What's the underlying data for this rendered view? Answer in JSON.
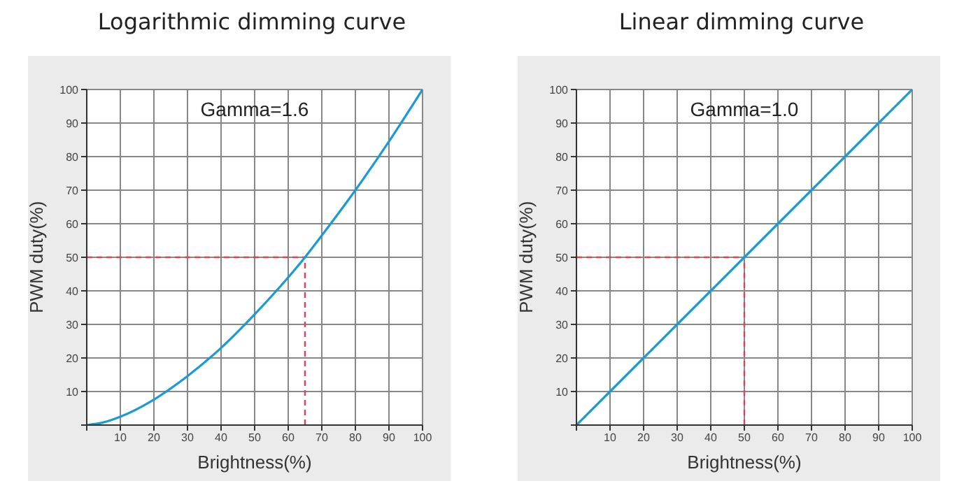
{
  "chart_data": [
    {
      "type": "line",
      "title": "Logarithmic dimming curve",
      "xlabel": "Brightness(%)",
      "ylabel": "PWM duty(%)",
      "annotations": [
        "Gamma=1.6"
      ],
      "x": [
        0,
        5,
        10,
        20,
        30,
        40,
        50,
        60,
        65,
        70,
        80,
        90,
        100
      ],
      "series": [
        {
          "color": "#1a9ad6",
          "values": [
            0,
            0.8,
            2.5,
            7.6,
            14.6,
            23,
            33,
            44,
            50,
            56.5,
            70,
            84.5,
            100
          ]
        }
      ],
      "xlim": [
        0,
        100
      ],
      "ylim": [
        0,
        100
      ],
      "xticks": [
        {
          "value": 0,
          "label": null
        },
        10,
        20,
        30,
        40,
        50,
        60,
        70,
        80,
        90,
        100
      ],
      "yticks": [
        {
          "value": 0,
          "label": null
        },
        10,
        20,
        30,
        40,
        50,
        60,
        70,
        80,
        90,
        100
      ],
      "grid": true,
      "line_style": "solid",
      "ref_lines": [
        {
          "axis": "x",
          "value": 65,
          "color": "#e0405a",
          "line_style": "dashed"
        },
        {
          "axis": "y",
          "value": 50,
          "color": "#e0405a",
          "line_style": "dashed"
        }
      ]
    },
    {
      "type": "line",
      "title": "Linear dimming curve",
      "xlabel": "Brightness(%)",
      "ylabel": "PWM duty(%)",
      "annotations": [
        "Gamma=1.0"
      ],
      "x": [
        0,
        10,
        20,
        30,
        40,
        50,
        60,
        70,
        80,
        90,
        100
      ],
      "series": [
        {
          "color": "#1a9ad6",
          "values": [
            0,
            10,
            20,
            30,
            40,
            50,
            60,
            70,
            80,
            90,
            100
          ]
        }
      ],
      "xlim": [
        0,
        100
      ],
      "ylim": [
        0,
        100
      ],
      "xticks": [
        {
          "value": 0,
          "label": null
        },
        10,
        20,
        30,
        40,
        50,
        60,
        70,
        80,
        90,
        100
      ],
      "yticks": [
        {
          "value": 0,
          "label": null
        },
        10,
        20,
        30,
        40,
        50,
        60,
        70,
        80,
        90,
        100
      ],
      "grid": true,
      "line_style": "solid",
      "ref_lines": [
        {
          "axis": "x",
          "value": 50,
          "color": "#e0405a",
          "line_style": "dashed"
        },
        {
          "axis": "y",
          "value": 50,
          "color": "#e0405a",
          "line_style": "dashed"
        }
      ]
    }
  ]
}
